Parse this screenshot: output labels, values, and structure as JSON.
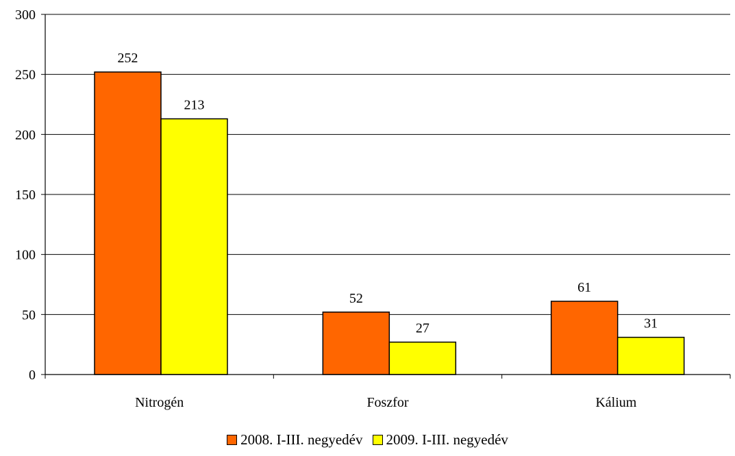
{
  "chart_data": {
    "type": "bar",
    "categories": [
      "Nitrogén",
      "Foszfor",
      "Kálium"
    ],
    "series": [
      {
        "name": "2008. I-III. negyedév",
        "values": [
          252,
          52,
          61
        ],
        "color": "#FF6600"
      },
      {
        "name": "2009. I-III. negyedév",
        "values": [
          213,
          27,
          31
        ],
        "color": "#FFFF00"
      }
    ],
    "title": "",
    "xlabel": "",
    "ylabel": "",
    "ylim": [
      0,
      300
    ],
    "yticks": [
      0,
      50,
      100,
      150,
      200,
      250,
      300
    ],
    "grid": true,
    "legend_position": "bottom"
  }
}
